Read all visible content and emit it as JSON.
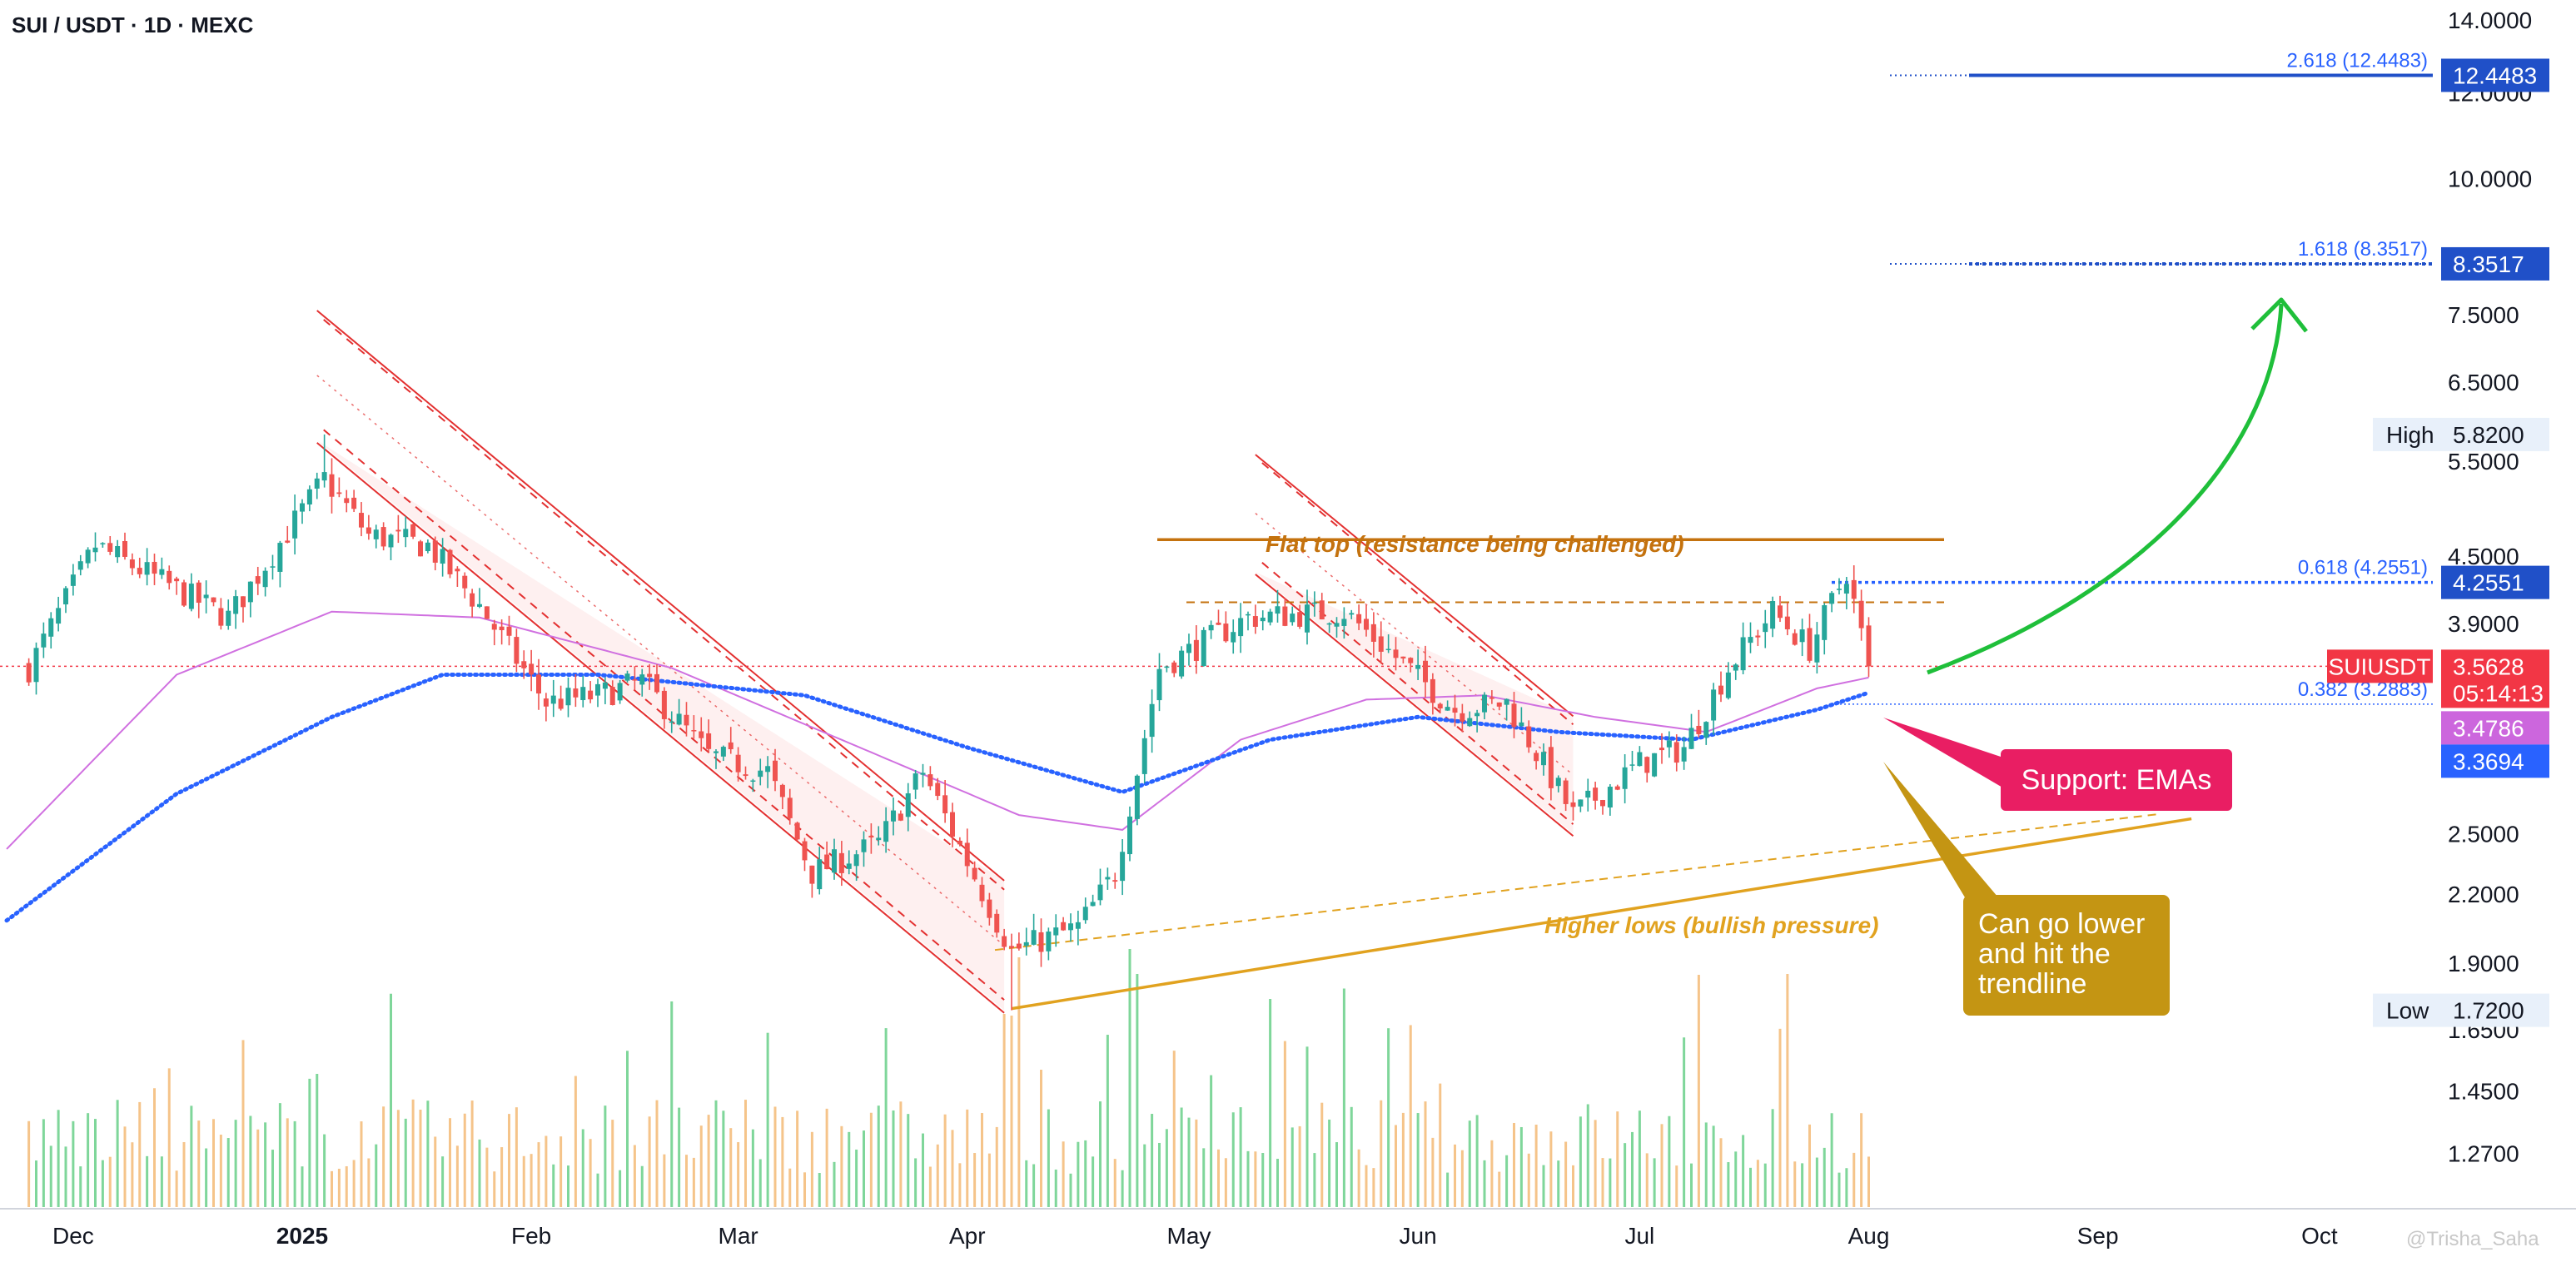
{
  "header": {
    "title": "SUI / USDT · 1D · MEXC"
  },
  "chart_data": {
    "type": "candlestick",
    "symbol": "SUIUSDT",
    "timeframe": "1D",
    "exchange": "MEXC",
    "y_scale": "log",
    "ylim": [
      1.13,
      14.6
    ],
    "y_ticks": [
      "14.0000",
      "12.0000",
      "10.0000",
      "7.5000",
      "6.5000",
      "5.5000",
      "4.5000",
      "3.9000",
      "2.5000",
      "2.2000",
      "1.9000",
      "1.6500",
      "1.4500",
      "1.2700"
    ],
    "x_ticks": [
      "Dec",
      "2025",
      "Feb",
      "Mar",
      "Apr",
      "May",
      "Jun",
      "Jul",
      "Aug",
      "Sep",
      "Oct"
    ],
    "price_tags": [
      {
        "id": "fib2618",
        "label": "12.4483",
        "value": 12.4483,
        "color": "#2050c8"
      },
      {
        "id": "fib1618",
        "label": "8.3517",
        "value": 8.3517,
        "color": "#2050c8"
      },
      {
        "id": "high",
        "label": "5.8200",
        "caption": "High",
        "value": 5.82,
        "color": "#e8f0fa"
      },
      {
        "id": "fib0618",
        "label": "4.2551",
        "value": 4.2551,
        "color": "#2050c8"
      },
      {
        "id": "last",
        "symbol": "SUIUSDT",
        "label": "3.5628",
        "countdown": "05:14:13",
        "value": 3.5628,
        "color": "#f23645"
      },
      {
        "id": "ema_fast",
        "label": "3.4786",
        "value": 3.4786,
        "color": "#cc66dd"
      },
      {
        "id": "ema_slow",
        "label": "3.3694",
        "value": 3.3694,
        "color": "#2962ff"
      },
      {
        "id": "low",
        "label": "1.7200",
        "caption": "Low",
        "value": 1.72,
        "color": "#e8f0fa"
      }
    ],
    "fib_levels": [
      {
        "label": "2.618 (12.4483)",
        "value": 12.4483
      },
      {
        "label": "1.618 (8.3517)",
        "value": 8.3517
      },
      {
        "label": "0.618 (4.2551)",
        "value": 4.2551
      },
      {
        "label": "0.382 (3.2883)",
        "value": 3.2883
      }
    ],
    "resistance": {
      "value": 4.25
    },
    "high": 5.82,
    "low": 1.72,
    "price_anchors": [
      [
        "2024-11-25",
        3.55
      ],
      [
        "2024-12-04",
        4.6
      ],
      [
        "2024-12-12",
        4.3
      ],
      [
        "2024-12-22",
        3.95
      ],
      [
        "2025-01-04",
        5.3
      ],
      [
        "2025-01-10",
        4.7
      ],
      [
        "2025-01-18",
        4.6
      ],
      [
        "2025-01-25",
        4.05
      ],
      [
        "2025-02-03",
        3.3
      ],
      [
        "2025-02-10",
        3.35
      ],
      [
        "2025-02-16",
        3.45
      ],
      [
        "2025-02-25",
        2.95
      ],
      [
        "2025-03-05",
        2.85
      ],
      [
        "2025-03-11",
        2.3
      ],
      [
        "2025-03-20",
        2.45
      ],
      [
        "2025-03-26",
        2.85
      ],
      [
        "2025-04-07",
        1.95
      ],
      [
        "2025-04-16",
        2.05
      ],
      [
        "2025-04-21",
        2.3
      ],
      [
        "2025-04-27",
        3.55
      ],
      [
        "2025-05-09",
        3.95
      ],
      [
        "2025-05-22",
        4.0
      ],
      [
        "2025-06-06",
        3.25
      ],
      [
        "2025-06-13",
        3.3
      ],
      [
        "2025-06-22",
        2.6
      ],
      [
        "2025-07-01",
        2.9
      ],
      [
        "2025-07-07",
        3.0
      ],
      [
        "2025-07-13",
        3.55
      ],
      [
        "2025-07-19",
        4.0
      ],
      [
        "2025-07-24",
        3.7
      ],
      [
        "2025-07-29",
        4.35
      ],
      [
        "2025-08-01",
        3.5628
      ]
    ],
    "ema_fast_anchors": [
      [
        "2024-11-22",
        2.42
      ],
      [
        "2024-12-15",
        3.5
      ],
      [
        "2025-01-05",
        4.0
      ],
      [
        "2025-01-25",
        3.95
      ],
      [
        "2025-02-20",
        3.55
      ],
      [
        "2025-03-20",
        2.95
      ],
      [
        "2025-04-08",
        2.6
      ],
      [
        "2025-04-22",
        2.52
      ],
      [
        "2025-05-08",
        3.05
      ],
      [
        "2025-05-25",
        3.32
      ],
      [
        "2025-06-10",
        3.35
      ],
      [
        "2025-06-25",
        3.2
      ],
      [
        "2025-07-10",
        3.1
      ],
      [
        "2025-07-25",
        3.4
      ],
      [
        "2025-08-01",
        3.4786
      ]
    ],
    "ema_slow_anchors": [
      [
        "2024-11-22",
        2.08
      ],
      [
        "2024-12-15",
        2.72
      ],
      [
        "2025-01-05",
        3.2
      ],
      [
        "2025-01-20",
        3.5
      ],
      [
        "2025-02-10",
        3.5
      ],
      [
        "2025-03-10",
        3.35
      ],
      [
        "2025-04-01",
        3.0
      ],
      [
        "2025-04-22",
        2.73
      ],
      [
        "2025-05-12",
        3.05
      ],
      [
        "2025-06-01",
        3.2
      ],
      [
        "2025-06-20",
        3.1
      ],
      [
        "2025-07-08",
        3.05
      ],
      [
        "2025-07-25",
        3.25
      ],
      [
        "2025-08-01",
        3.3694
      ]
    ],
    "channels": [
      {
        "from": [
          "2025-01-03",
          5.75
        ],
        "to": [
          "2025-04-06",
          1.72
        ],
        "width_pct": 0.24
      },
      {
        "from": [
          "2025-05-10",
          4.35
        ],
        "to": [
          "2025-06-22",
          2.5
        ],
        "width_pct": 0.22
      }
    ],
    "trendline": {
      "from": [
        "2025-04-07",
        1.72
      ],
      "to": [
        "2025-08-12",
        2.72
      ]
    },
    "dashed_trendline": {
      "from": [
        "2025-04-07",
        1.92
      ],
      "to": [
        "2025-08-12",
        2.82
      ]
    }
  },
  "annotations": {
    "flat_top": "Flat top (resistance being challenged)",
    "higher_lows": "Higher lows (bullish pressure)",
    "support": "Support: EMAs",
    "lower": [
      "Can go lower",
      "and hit the",
      "trendline"
    ]
  },
  "colors": {
    "bull": "#26a69a",
    "bear": "#ef5350",
    "vol_bull": "#7fd69a",
    "vol_bear": "#f5c48a",
    "channel": "#e33030",
    "resistance": "#c4720e",
    "trend": "#e1a21f",
    "support_box": "#e91e63",
    "lower_box": "#c49513",
    "arrow": "#1fbf3a"
  },
  "watermark": "@Trisha_Saha"
}
